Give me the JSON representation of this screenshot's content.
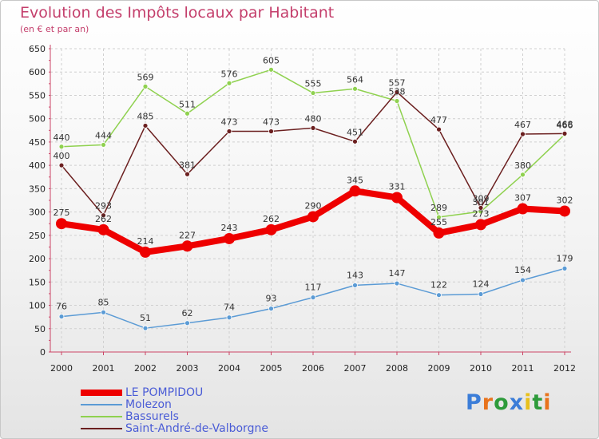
{
  "chart_data": {
    "type": "line",
    "title": "Evolution des Impôts locaux par Habitant",
    "subtitle": "(en € et par an)",
    "categories": [
      "2000",
      "2001",
      "2002",
      "2003",
      "2004",
      "2005",
      "2006",
      "2007",
      "2008",
      "2009",
      "2010",
      "2011",
      "2012"
    ],
    "ylim": [
      0,
      650
    ],
    "yticks": [
      0,
      50,
      100,
      150,
      200,
      250,
      300,
      350,
      400,
      450,
      500,
      550,
      600,
      650
    ],
    "grid": true,
    "legend_position": "bottom-left",
    "series": [
      {
        "name": "LE POMPIDOU",
        "color": "#ee0000",
        "values": [
          275,
          262,
          214,
          227,
          243,
          262,
          290,
          345,
          331,
          255,
          273,
          307,
          302
        ]
      },
      {
        "name": "Molezon",
        "color": "#5b9bd5",
        "values": [
          76,
          85,
          51,
          62,
          74,
          93,
          117,
          143,
          147,
          122,
          124,
          154,
          179
        ]
      },
      {
        "name": "Bassurels",
        "color": "#8fd14f",
        "values": [
          440,
          444,
          569,
          511,
          576,
          605,
          555,
          564,
          538,
          289,
          301,
          380,
          466
        ]
      },
      {
        "name": "Saint-André-de-Valborgne",
        "color": "#6b1f1f",
        "values": [
          400,
          293,
          485,
          381,
          473,
          473,
          480,
          451,
          557,
          477,
          309,
          467,
          468
        ]
      }
    ]
  },
  "logo": {
    "text": "Proxiti",
    "letters": [
      "P",
      "r",
      "o",
      "x",
      "i",
      "t",
      "i"
    ],
    "colors": [
      "#3b7dd8",
      "#e8731c",
      "#2e9b3b",
      "#3b7dd8",
      "#e8c01c",
      "#2e9b3b",
      "#e8731c"
    ]
  }
}
